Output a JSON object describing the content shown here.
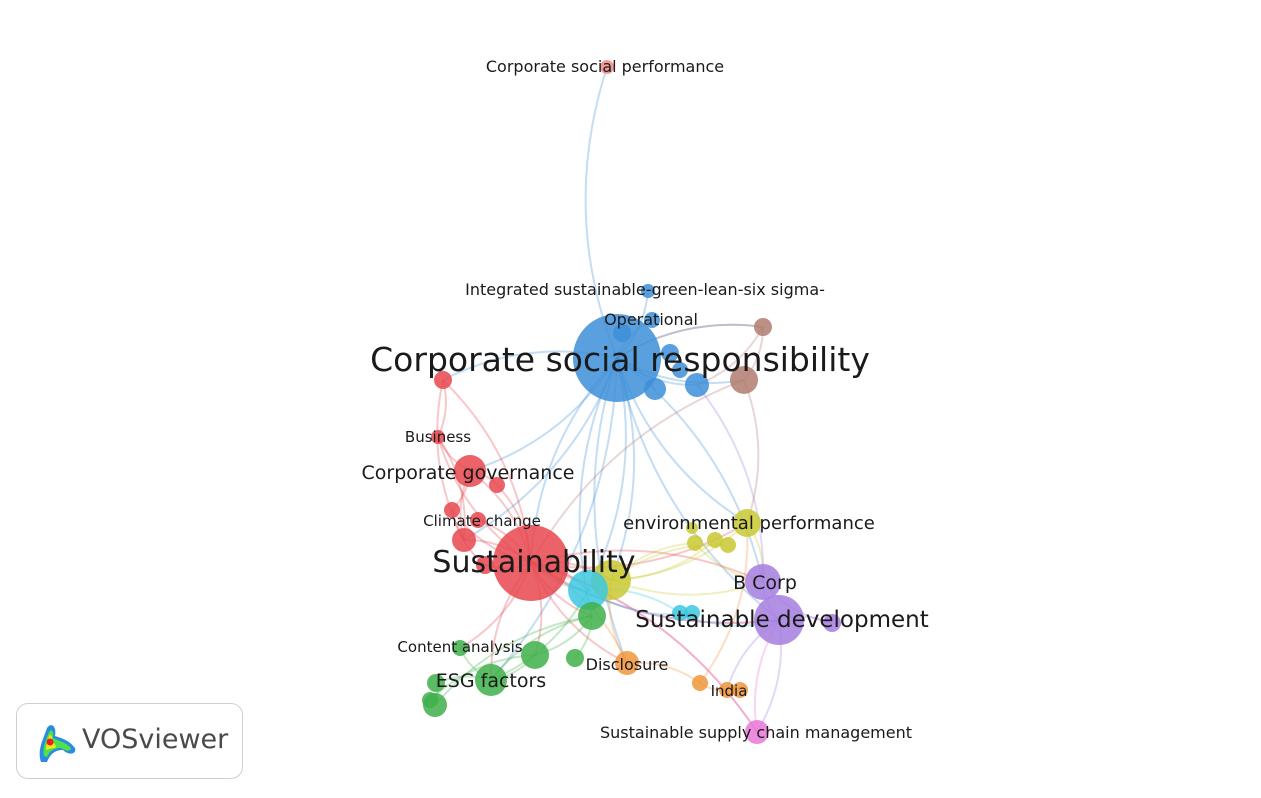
{
  "app": {
    "name": "VOSviewer"
  },
  "clusters": {
    "red": "#e8474f",
    "blue": "#3d8fd8",
    "green": "#3fb04a",
    "yellow": "#c9c932",
    "purple": "#a57ee0",
    "cyan": "#3cc8e0",
    "orange": "#f0963c",
    "brown": "#b07c70",
    "pink": "#e878d8",
    "lightred": "#f08a8a"
  },
  "labels": [
    {
      "text": "Corporate social performance",
      "cluster": "lightred"
    },
    {
      "text": "Integrated sustainable-green-lean-six sigma-",
      "cluster": "blue"
    },
    {
      "text": "Operational",
      "cluster": "blue"
    },
    {
      "text": "Corporate social responsibility",
      "cluster": "blue"
    },
    {
      "text": "Business",
      "cluster": "red"
    },
    {
      "text": "Corporate governance",
      "cluster": "red"
    },
    {
      "text": "Climate change",
      "cluster": "red"
    },
    {
      "text": "environmental performance",
      "cluster": "yellow"
    },
    {
      "text": "Sustainability",
      "cluster": "red"
    },
    {
      "text": "B Corp",
      "cluster": "purple"
    },
    {
      "text": "Sustainable development",
      "cluster": "purple"
    },
    {
      "text": "Content analysis",
      "cluster": "green"
    },
    {
      "text": "Disclosure",
      "cluster": "orange"
    },
    {
      "text": "ESG factors",
      "cluster": "green"
    },
    {
      "text": "India",
      "cluster": "orange"
    },
    {
      "text": "Sustainable supply chain management",
      "cluster": "pink"
    }
  ]
}
